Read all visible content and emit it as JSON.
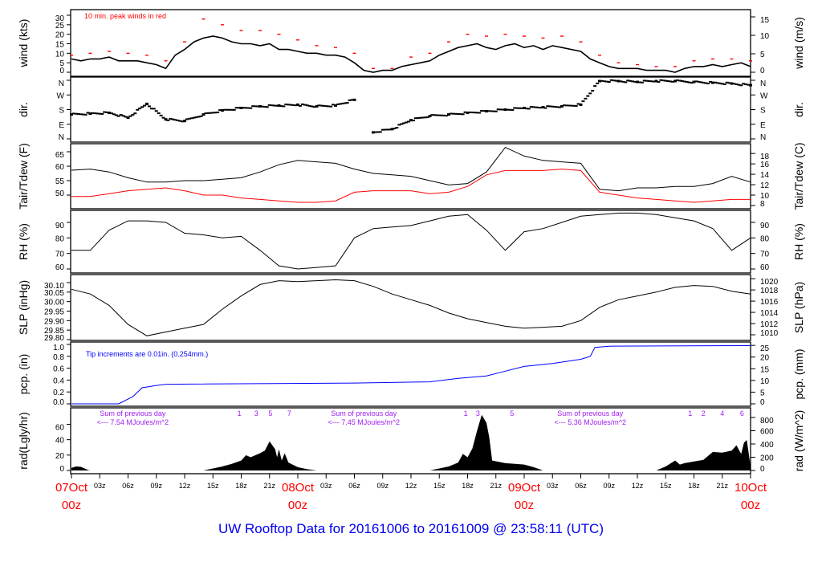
{
  "title": "UW Rooftop Data for 20161006  to  20161009 @ 23:58:11  (UTC)",
  "colors": {
    "title": "#0000ee",
    "day_labels": "#ff0000",
    "gust": "#ff0000",
    "dew": "#ff0000",
    "precip": "#0000ff",
    "rad_annot": "#a020f0",
    "line": "#000000"
  },
  "x_axis": {
    "hour_ticks": [
      "03z",
      "06z",
      "09z",
      "12z",
      "15z",
      "18z",
      "21z",
      "",
      "03z",
      "06z",
      "09z",
      "12z",
      "15z",
      "18z",
      "21z",
      "",
      "03z",
      "06z",
      "09z",
      "12z",
      "15z",
      "18z",
      "21z"
    ],
    "days": [
      {
        "hour": 0,
        "date": "07Oct",
        "time": "00z"
      },
      {
        "hour": 24,
        "date": "08Oct",
        "time": "00z"
      },
      {
        "hour": 48,
        "date": "09Oct",
        "time": "00z"
      },
      {
        "hour": 72,
        "date": "10Oct",
        "time": "00z"
      }
    ]
  },
  "chart_data": [
    {
      "id": "wind",
      "type": "line",
      "ylabel": "wind (kts)",
      "ylabel_right": "wind (m/s)",
      "annotation": "10 min. peak winds in red",
      "left_ticks": [
        "0",
        "5",
        "10",
        "15",
        "20",
        "25",
        "30"
      ],
      "right_ticks": [
        "0",
        "5",
        "10",
        "15"
      ],
      "ylim": [
        0,
        30
      ],
      "x_hours": [
        0,
        72
      ],
      "mean_hourly": [
        7,
        6,
        7,
        7,
        8,
        6,
        6,
        6,
        5,
        4,
        2,
        9,
        12,
        16,
        18,
        19,
        18,
        16,
        15,
        15,
        14,
        15,
        12,
        12,
        11,
        10,
        10,
        9,
        9,
        8,
        5,
        1,
        0,
        1,
        1,
        3,
        4,
        5,
        6,
        9,
        11,
        13,
        14,
        15,
        13,
        12,
        14,
        15,
        13,
        14,
        12,
        14,
        13,
        12,
        11,
        7,
        5,
        3,
        2,
        2,
        2,
        1,
        1,
        1,
        0,
        2,
        3,
        3,
        4,
        3,
        4,
        5,
        3
      ],
      "gust_2hourly": [
        9,
        10,
        11,
        10,
        9,
        6,
        16,
        28,
        25,
        22,
        22,
        20,
        17,
        14,
        13,
        10,
        2,
        2,
        8,
        10,
        16,
        20,
        19,
        20,
        19,
        18,
        19,
        16,
        9,
        5,
        4,
        3,
        3,
        6,
        7,
        7,
        6
      ]
    },
    {
      "id": "dir",
      "type": "scatter",
      "ylabel": "dir.",
      "ylabel_right": "dir.",
      "left_ticks": [
        "N",
        "E",
        "S",
        "W",
        "N"
      ],
      "right_ticks": [
        "N",
        "E",
        "S",
        "W",
        "N"
      ],
      "ylim": [
        0,
        360
      ],
      "deg_2hourly": [
        150,
        155,
        160,
        130,
        215,
        120,
        110,
        150,
        175,
        190,
        200,
        205,
        210,
        200,
        205,
        240,
        40,
        60,
        115,
        140,
        150,
        160,
        170,
        180,
        190,
        195,
        200,
        210,
        355,
        355,
        350,
        355,
        355,
        350,
        345,
        340,
        330
      ]
    },
    {
      "id": "temp",
      "type": "line",
      "ylabel": "Tair/Tdew (F)",
      "ylabel_right": "Tair/Tdew (C)",
      "left_ticks": [
        "50",
        "55",
        "60",
        "65"
      ],
      "right_ticks": [
        "8",
        "10",
        "12",
        "14",
        "16",
        "18"
      ],
      "ylim": [
        50,
        65
      ],
      "series": [
        {
          "values": [
            58.6,
            59,
            58,
            56,
            54.5,
            54.5,
            55,
            55,
            55.5,
            56,
            58,
            60.5,
            62,
            61.5,
            61,
            59,
            57.5,
            57,
            56.5,
            55,
            53.5,
            54,
            58,
            66.5,
            63.5,
            62,
            61.5,
            61,
            52,
            51.5,
            52.5,
            52.5,
            53,
            53,
            54,
            56.5,
            54.5
          ]
        },
        {
          "values": [
            49.5,
            49.5,
            50.5,
            51.5,
            52,
            52.5,
            51.5,
            50,
            50,
            49,
            48.5,
            48,
            47.5,
            47.5,
            48,
            51,
            51.5,
            51.5,
            51.5,
            50.5,
            51,
            53,
            57,
            58.5,
            58.5,
            58.5,
            59,
            58.5,
            51,
            50,
            49,
            48.5,
            48,
            47.5,
            48,
            48.5,
            48.5
          ]
        }
      ]
    },
    {
      "id": "rh",
      "type": "line",
      "ylabel": "RH (%)",
      "ylabel_right": "RH (%)",
      "left_ticks": [
        "60",
        "70",
        "80",
        "90"
      ],
      "right_ticks": [
        "60",
        "70",
        "80",
        "90"
      ],
      "ylim": [
        60,
        90
      ],
      "values": [
        72,
        72,
        85,
        91,
        91,
        90,
        83,
        82,
        80,
        81,
        72,
        62,
        60,
        61,
        62,
        80,
        86,
        87,
        88,
        91,
        94,
        95,
        85,
        72,
        84,
        86,
        90,
        94,
        95,
        96,
        96,
        95,
        93,
        91,
        86,
        72,
        80
      ]
    },
    {
      "id": "slp",
      "type": "line",
      "ylabel": "SLP (inHg)",
      "ylabel_right": "SLP (hPa)",
      "left_ticks": [
        "29.80",
        "29.85",
        "29.90",
        "29.95",
        "30.00",
        "30.05",
        "30.10"
      ],
      "right_ticks": [
        "1010",
        "1012",
        "1014",
        "1016",
        "1018",
        "1020"
      ],
      "ylim": [
        29.8,
        30.1
      ],
      "values": [
        30.065,
        30.04,
        29.98,
        29.88,
        29.82,
        29.84,
        29.86,
        29.88,
        29.96,
        30.03,
        30.09,
        30.11,
        30.105,
        30.11,
        30.115,
        30.11,
        30.08,
        30.04,
        30.01,
        29.98,
        29.94,
        29.91,
        29.89,
        29.87,
        29.86,
        29.865,
        29.87,
        29.9,
        29.97,
        30.01,
        30.03,
        30.05,
        30.075,
        30.085,
        30.08,
        30.055,
        30.04
      ]
    },
    {
      "id": "pcp",
      "type": "line",
      "ylabel": "pcp. (in)",
      "ylabel_right": "pcp. (mm)",
      "annotation": "Tip increments are 0.01in. (0.254mm.)",
      "left_ticks": [
        "0.0",
        "0.2",
        "0.4",
        "0.6",
        "0.8",
        "1.0"
      ],
      "right_ticks": [
        "0",
        "5",
        "10",
        "15",
        "20",
        "25"
      ],
      "ylim": [
        0,
        1.0
      ],
      "points": [
        [
          0,
          0
        ],
        [
          5,
          0
        ],
        [
          6.5,
          0.12
        ],
        [
          7.5,
          0.27
        ],
        [
          9,
          0.31
        ],
        [
          10,
          0.33
        ],
        [
          30,
          0.35
        ],
        [
          38,
          0.37
        ],
        [
          41,
          0.43
        ],
        [
          44,
          0.47
        ],
        [
          46,
          0.55
        ],
        [
          48,
          0.63
        ],
        [
          51,
          0.68
        ],
        [
          54,
          0.75
        ],
        [
          55,
          0.8
        ],
        [
          55.5,
          0.95
        ],
        [
          57,
          0.97
        ],
        [
          72,
          0.98
        ]
      ]
    },
    {
      "id": "rad",
      "type": "area",
      "ylabel": "rad(Lgly/hr)",
      "ylabel_right": "rad (W/m^2)",
      "left_ticks": [
        "0",
        "20",
        "40",
        "60"
      ],
      "right_ticks": [
        "0",
        "200",
        "400",
        "600",
        "800"
      ],
      "ylim_right": [
        0,
        800
      ],
      "points": [
        [
          0,
          40
        ],
        [
          0.5,
          60
        ],
        [
          1,
          55
        ],
        [
          1.8,
          5
        ],
        [
          2,
          0
        ],
        [
          14,
          0
        ],
        [
          15,
          30
        ],
        [
          16,
          60
        ],
        [
          17,
          100
        ],
        [
          18,
          150
        ],
        [
          18.5,
          230
        ],
        [
          19,
          200
        ],
        [
          19.5,
          230
        ],
        [
          20,
          260
        ],
        [
          20.5,
          300
        ],
        [
          21,
          440
        ],
        [
          21.3,
          380
        ],
        [
          21.6,
          320
        ],
        [
          21.8,
          200
        ],
        [
          22,
          320
        ],
        [
          22.3,
          150
        ],
        [
          22.6,
          260
        ],
        [
          23,
          120
        ],
        [
          24,
          50
        ],
        [
          25,
          20
        ],
        [
          26,
          0
        ],
        [
          38,
          0
        ],
        [
          39,
          30
        ],
        [
          40,
          60
        ],
        [
          41,
          120
        ],
        [
          41.5,
          250
        ],
        [
          42,
          200
        ],
        [
          42.5,
          330
        ],
        [
          43,
          600
        ],
        [
          43.5,
          840
        ],
        [
          44,
          720
        ],
        [
          44.3,
          500
        ],
        [
          44.6,
          150
        ],
        [
          46,
          110
        ],
        [
          48,
          90
        ],
        [
          49,
          50
        ],
        [
          50,
          0
        ],
        [
          62,
          0
        ],
        [
          63,
          60
        ],
        [
          64,
          150
        ],
        [
          64.5,
          90
        ],
        [
          65,
          110
        ],
        [
          67,
          160
        ],
        [
          68,
          280
        ],
        [
          69,
          270
        ],
        [
          70,
          300
        ],
        [
          70.5,
          380
        ],
        [
          71,
          250
        ],
        [
          71.3,
          420
        ],
        [
          71.6,
          460
        ],
        [
          72,
          60
        ]
      ],
      "annotations": [
        {
          "hour": 6.5,
          "line1": "Sum of previous day",
          "line2": "<--- 7.54 MJoules/m^2"
        },
        {
          "hour": 31,
          "line1": "Sum of previous day",
          "line2": "<--- 7.45 MJoules/m^2"
        },
        {
          "hour": 55,
          "line1": "Sum of previous day",
          "line2": "<--- 5.36 MJoules/m^2"
        }
      ],
      "hour_marks": [
        {
          "hour": 17.8,
          "label": "1"
        },
        {
          "hour": 19.6,
          "label": "3"
        },
        {
          "hour": 21.1,
          "label": "5"
        },
        {
          "hour": 23.1,
          "label": "7"
        },
        {
          "hour": 41.8,
          "label": "1"
        },
        {
          "hour": 43.1,
          "label": "3"
        },
        {
          "hour": 46.7,
          "label": "5"
        },
        {
          "hour": 65.6,
          "label": "1"
        },
        {
          "hour": 67,
          "label": "2"
        },
        {
          "hour": 69,
          "label": "4"
        },
        {
          "hour": 71.1,
          "label": "6"
        }
      ]
    }
  ]
}
